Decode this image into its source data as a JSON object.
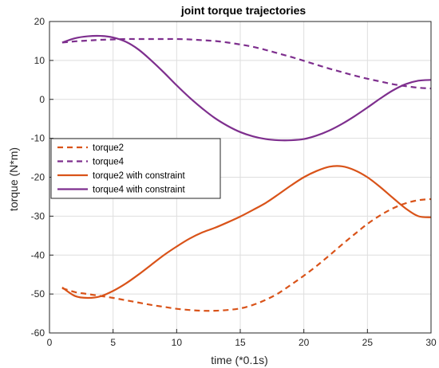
{
  "chart_data": {
    "type": "line",
    "title": "joint torque trajectories",
    "xlabel": "time (*0.1s)",
    "ylabel": "torque (N*m)",
    "xlim": [
      0,
      30
    ],
    "ylim": [
      -60,
      20
    ],
    "xticks": [
      0,
      5,
      10,
      15,
      20,
      25,
      30
    ],
    "yticks": [
      -60,
      -50,
      -40,
      -30,
      -20,
      -10,
      0,
      10,
      20
    ],
    "grid": true,
    "legend_position": "middle-left",
    "series": [
      {
        "name": "torque2",
        "color": "#D95319",
        "style": "dashed",
        "x": [
          1,
          2,
          3,
          4,
          5,
          6,
          7,
          8,
          9,
          10,
          11,
          12,
          13,
          14,
          15,
          16,
          17,
          18,
          19,
          20,
          21,
          22,
          23,
          24,
          25,
          26,
          27,
          28,
          29,
          30
        ],
        "y": [
          -48.5,
          -49.5,
          -50.0,
          -50.5,
          -51.0,
          -51.6,
          -52.2,
          -52.8,
          -53.3,
          -53.8,
          -54.1,
          -54.3,
          -54.3,
          -54.1,
          -53.7,
          -52.8,
          -51.5,
          -49.8,
          -47.6,
          -45.3,
          -42.8,
          -40.1,
          -37.3,
          -34.6,
          -32.0,
          -29.8,
          -28.0,
          -26.7,
          -25.9,
          -25.6
        ]
      },
      {
        "name": "torque4",
        "color": "#7E2F8E",
        "style": "dashed",
        "x": [
          1,
          2,
          3,
          4,
          5,
          6,
          7,
          8,
          9,
          10,
          11,
          12,
          13,
          14,
          15,
          16,
          17,
          18,
          19,
          20,
          21,
          22,
          23,
          24,
          25,
          26,
          27,
          28,
          29,
          30
        ],
        "y": [
          14.6,
          14.9,
          15.1,
          15.3,
          15.4,
          15.5,
          15.5,
          15.5,
          15.5,
          15.5,
          15.4,
          15.2,
          15.0,
          14.6,
          14.1,
          13.5,
          12.7,
          11.8,
          10.9,
          9.9,
          8.9,
          7.9,
          7.0,
          6.1,
          5.3,
          4.6,
          3.9,
          3.4,
          3.0,
          2.8
        ]
      },
      {
        "name": "torque2 with constraint",
        "color": "#D95319",
        "style": "solid",
        "x": [
          1,
          2,
          3,
          4,
          5,
          6,
          7,
          8,
          9,
          10,
          11,
          12,
          13,
          14,
          15,
          16,
          17,
          18,
          19,
          20,
          21,
          22,
          23,
          24,
          25,
          26,
          27,
          28,
          29,
          30
        ],
        "y": [
          -48.3,
          -50.5,
          -51.0,
          -50.6,
          -49.2,
          -47.3,
          -45.0,
          -42.5,
          -40.0,
          -37.8,
          -35.8,
          -34.2,
          -33.0,
          -31.6,
          -30.1,
          -28.4,
          -26.6,
          -24.4,
          -22.1,
          -20.0,
          -18.4,
          -17.3,
          -17.2,
          -18.2,
          -20.0,
          -22.5,
          -25.3,
          -28.0,
          -30.0,
          -30.3
        ]
      },
      {
        "name": "torque4 with constraint",
        "color": "#7E2F8E",
        "style": "solid",
        "x": [
          1,
          2,
          3,
          4,
          5,
          6,
          7,
          8,
          9,
          10,
          11,
          12,
          13,
          14,
          15,
          16,
          17,
          18,
          19,
          20,
          21,
          22,
          23,
          24,
          25,
          26,
          27,
          28,
          29,
          30
        ],
        "y": [
          14.6,
          15.7,
          16.2,
          16.3,
          15.9,
          14.8,
          12.8,
          10.0,
          6.9,
          3.6,
          0.5,
          -2.3,
          -4.8,
          -6.8,
          -8.4,
          -9.5,
          -10.2,
          -10.5,
          -10.5,
          -10.2,
          -9.3,
          -8.0,
          -6.3,
          -4.3,
          -2.1,
          0.2,
          2.3,
          3.9,
          4.8,
          5.0
        ]
      }
    ]
  }
}
